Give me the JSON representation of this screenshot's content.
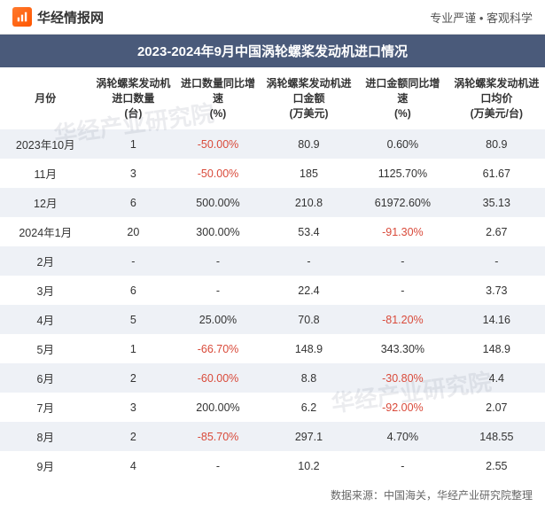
{
  "header": {
    "logo_text": "华经情报网",
    "tagline": "专业严谨 • 客观科学"
  },
  "title": "2023-2024年9月中国涡轮螺桨发动机进口情况",
  "watermark": "华经产业研究院",
  "table": {
    "columns": [
      "月份",
      "涡轮螺桨发动机进口数量\n(台)",
      "进口数量同比增速\n(%)",
      "涡轮螺桨发动机进口金额\n(万美元)",
      "进口金额同比增速\n(%)",
      "涡轮螺桨发动机进口均价\n(万美元/台)"
    ],
    "rows": [
      {
        "month": "2023年10月",
        "qty": "1",
        "qty_yoy": "-50.00%",
        "qty_neg": true,
        "amt": "80.9",
        "amt_yoy": "0.60%",
        "amt_neg": false,
        "avg": "80.9"
      },
      {
        "month": "11月",
        "qty": "3",
        "qty_yoy": "-50.00%",
        "qty_neg": true,
        "amt": "185",
        "amt_yoy": "1125.70%",
        "amt_neg": false,
        "avg": "61.67"
      },
      {
        "month": "12月",
        "qty": "6",
        "qty_yoy": "500.00%",
        "qty_neg": false,
        "amt": "210.8",
        "amt_yoy": "61972.60%",
        "amt_neg": false,
        "avg": "35.13"
      },
      {
        "month": "2024年1月",
        "qty": "20",
        "qty_yoy": "300.00%",
        "qty_neg": false,
        "amt": "53.4",
        "amt_yoy": "-91.30%",
        "amt_neg": true,
        "avg": "2.67"
      },
      {
        "month": "2月",
        "qty": "-",
        "qty_yoy": "-",
        "qty_neg": false,
        "amt": "-",
        "amt_yoy": "-",
        "amt_neg": false,
        "avg": "-"
      },
      {
        "month": "3月",
        "qty": "6",
        "qty_yoy": "-",
        "qty_neg": false,
        "amt": "22.4",
        "amt_yoy": "-",
        "amt_neg": false,
        "avg": "3.73"
      },
      {
        "month": "4月",
        "qty": "5",
        "qty_yoy": "25.00%",
        "qty_neg": false,
        "amt": "70.8",
        "amt_yoy": "-81.20%",
        "amt_neg": true,
        "avg": "14.16"
      },
      {
        "month": "5月",
        "qty": "1",
        "qty_yoy": "-66.70%",
        "qty_neg": true,
        "amt": "148.9",
        "amt_yoy": "343.30%",
        "amt_neg": false,
        "avg": "148.9"
      },
      {
        "month": "6月",
        "qty": "2",
        "qty_yoy": "-60.00%",
        "qty_neg": true,
        "amt": "8.8",
        "amt_yoy": "-30.80%",
        "amt_neg": true,
        "avg": "4.4"
      },
      {
        "month": "7月",
        "qty": "3",
        "qty_yoy": "200.00%",
        "qty_neg": false,
        "amt": "6.2",
        "amt_yoy": "-92.00%",
        "amt_neg": true,
        "avg": "2.07"
      },
      {
        "month": "8月",
        "qty": "2",
        "qty_yoy": "-85.70%",
        "qty_neg": true,
        "amt": "297.1",
        "amt_yoy": "4.70%",
        "amt_neg": false,
        "avg": "148.55"
      },
      {
        "month": "9月",
        "qty": "4",
        "qty_yoy": "-",
        "qty_neg": false,
        "amt": "10.2",
        "amt_yoy": "-",
        "amt_neg": false,
        "avg": "2.55"
      }
    ]
  },
  "source": "数据来源：中国海关，华经产业研究院整理",
  "styling": {
    "title_bg": "#4a5a7a",
    "title_color": "#ffffff",
    "row_odd_bg": "#eef1f6",
    "row_even_bg": "#ffffff",
    "negative_color": "#d94a3a",
    "text_color": "#333333",
    "muted_color": "#666666",
    "logo_gradient": [
      "#ff7a2d",
      "#ff5500"
    ],
    "header_fontsize": 12,
    "cell_fontsize": 12.5,
    "title_fontsize": 15
  }
}
